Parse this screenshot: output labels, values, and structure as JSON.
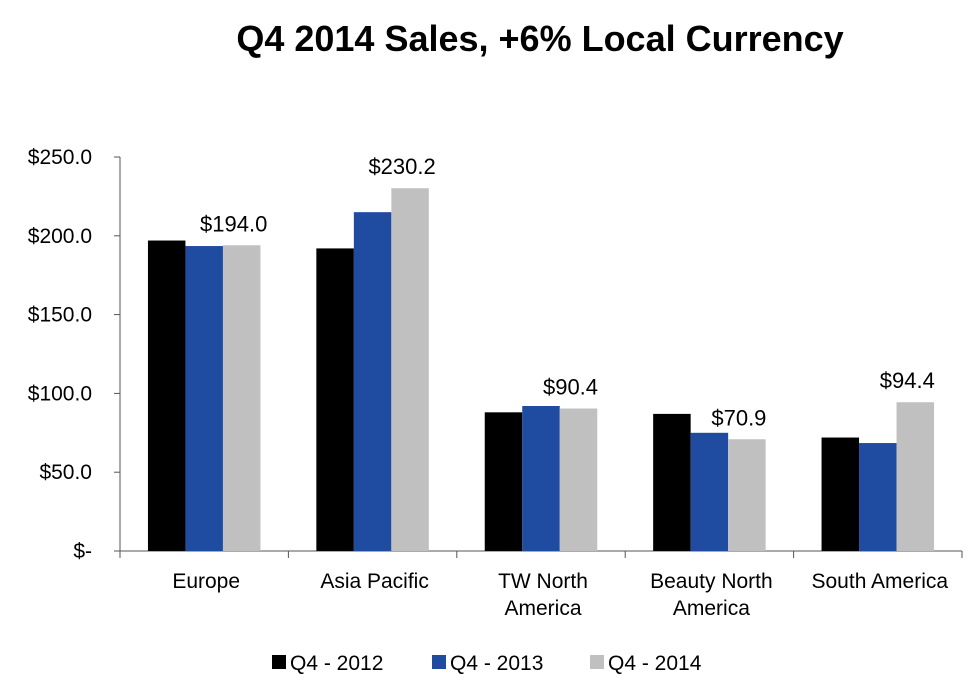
{
  "chart_data": {
    "type": "bar",
    "title": "Q4 2014 Sales, +6% Local Currency",
    "categories": [
      [
        "Europe"
      ],
      [
        "Asia Pacific"
      ],
      [
        "TW North",
        "America"
      ],
      [
        "Beauty North",
        "America"
      ],
      [
        "South America"
      ]
    ],
    "series": [
      {
        "name": "Q4 - 2012",
        "color": "#000000",
        "values": [
          197.0,
          192.0,
          88.0,
          87.0,
          72.0
        ]
      },
      {
        "name": "Q4 - 2013",
        "color": "#1F4BA0",
        "values": [
          193.5,
          215.0,
          92.0,
          75.0,
          68.5
        ]
      },
      {
        "name": "Q4 - 2014",
        "color": "#C0C0C0",
        "values": [
          194.0,
          230.2,
          90.4,
          70.9,
          94.4
        ]
      }
    ],
    "data_labels": [
      {
        "category_index": 0,
        "series_index": 2,
        "text": "$194.0"
      },
      {
        "category_index": 1,
        "series_index": 2,
        "text": "$230.2"
      },
      {
        "category_index": 2,
        "series_index": 2,
        "text": "$90.4"
      },
      {
        "category_index": 3,
        "series_index": 2,
        "text": "$70.9"
      },
      {
        "category_index": 4,
        "series_index": 2,
        "text": "$94.4"
      }
    ],
    "y_ticks": [
      {
        "value": 0,
        "label": "$-"
      },
      {
        "value": 50,
        "label": "$50.0"
      },
      {
        "value": 100,
        "label": "$100.0"
      },
      {
        "value": 150,
        "label": "$150.0"
      },
      {
        "value": 200,
        "label": "$200.0"
      },
      {
        "value": 250,
        "label": "$250.0"
      }
    ],
    "ylim": [
      0,
      250
    ],
    "grid": false,
    "legend_position": "bottom"
  }
}
